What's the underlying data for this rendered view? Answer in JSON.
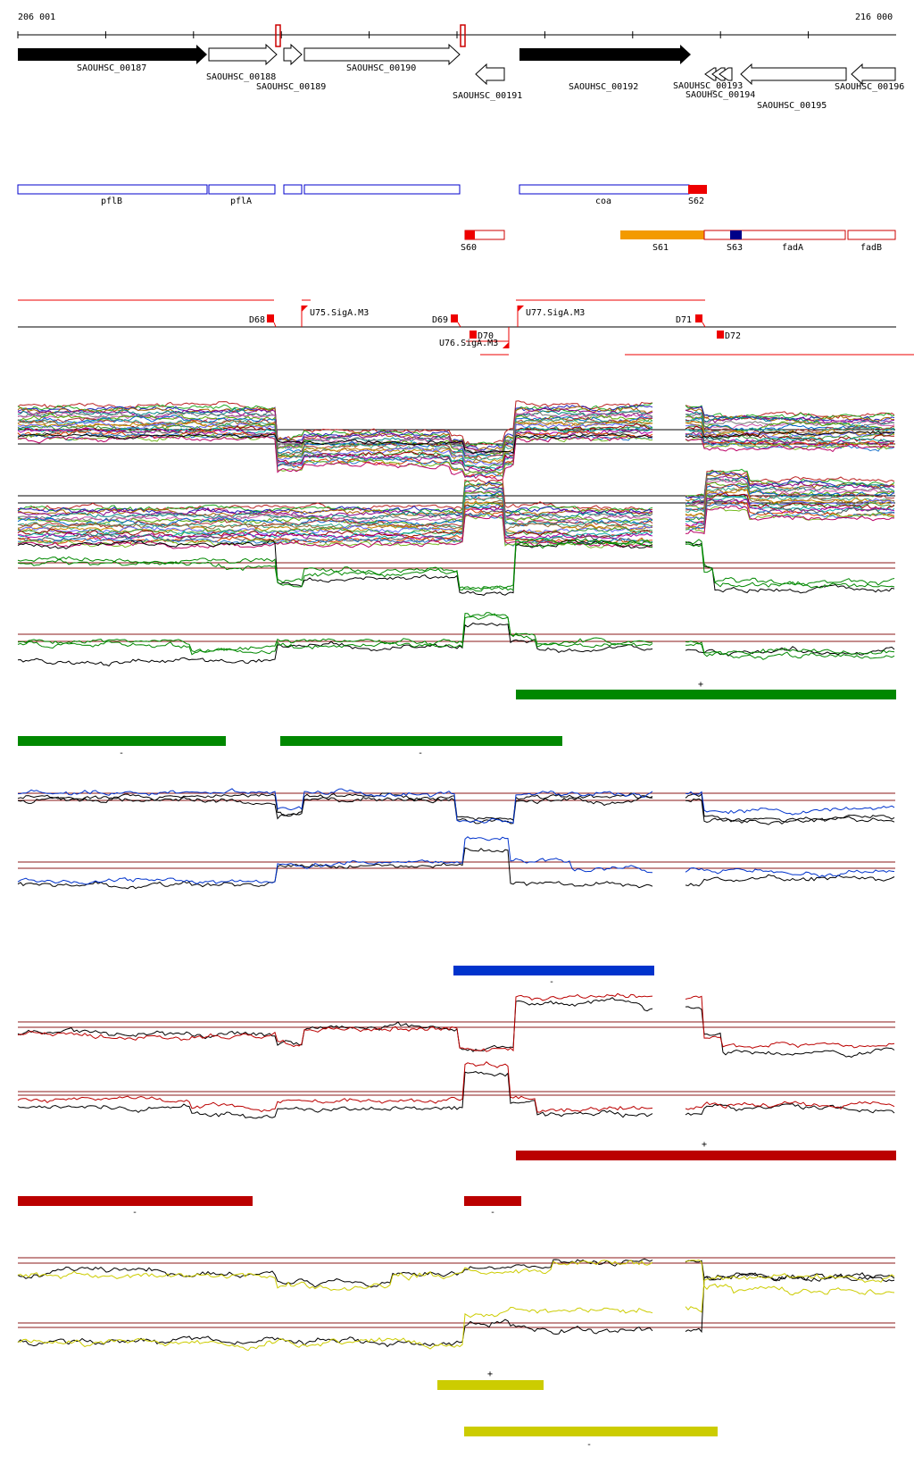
{
  "coordinates": {
    "start": "206 001",
    "end": "216 000"
  },
  "genes": [
    {
      "label": "SAOUHSC_00187"
    },
    {
      "label": "SAOUHSC_00188"
    },
    {
      "label": "SAOUHSC_00189"
    },
    {
      "label": "SAOUHSC_00190"
    },
    {
      "label": "SAOUHSC_00191"
    },
    {
      "label": "SAOUHSC_00192"
    },
    {
      "label": "SAOUHSC_00193"
    },
    {
      "label": "SAOUHSC_00194"
    },
    {
      "label": "SAOUHSC_00195"
    },
    {
      "label": "SAOUHSC_00196"
    }
  ],
  "operon_labels": [
    "pflB",
    "pflA",
    "coa",
    "fadA",
    "fadB"
  ],
  "segments": [
    "S60",
    "S61",
    "S62",
    "S63"
  ],
  "promoters": [
    "U75.SigA.M3",
    "U76.SigA.M3",
    "U77.SigA.M3"
  ],
  "terminators": [
    "D68",
    "D69",
    "D70",
    "D71",
    "D72"
  ],
  "strand_marks": {
    "plus": "+",
    "minus": "-"
  },
  "colors": {
    "green": "#008800",
    "blue": "#0033cc",
    "red": "#bb0000",
    "yellow": "#cccc00",
    "orange": "#f39a00",
    "navy": "#000088"
  }
}
